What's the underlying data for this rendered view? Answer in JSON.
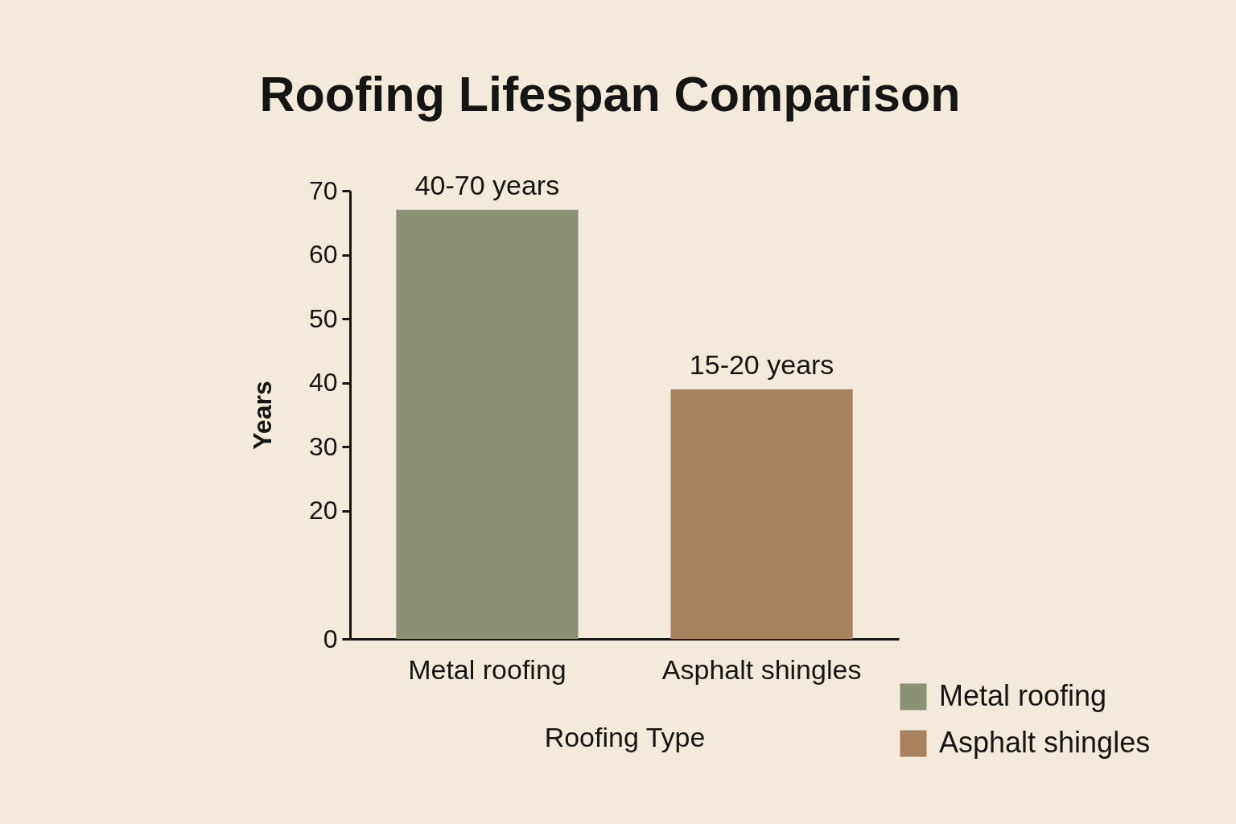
{
  "chart_data": {
    "type": "bar",
    "title": "Roofing Lifespan Comparison",
    "xlabel": "Roofing Type",
    "ylabel": "Years",
    "categories": [
      "Metal roofing",
      "Asphalt shingles"
    ],
    "stacked": true,
    "series": [
      {
        "name": "Metal roofing",
        "color": "#8b9173",
        "values": [
          67,
          null
        ],
        "value_labels": [
          "40-70 years",
          null
        ]
      },
      {
        "name": "Asphalt shingles",
        "color": "#a8825f",
        "values": [
          null,
          39
        ],
        "value_labels": [
          null,
          "15-20 years"
        ]
      }
    ],
    "ylim": [
      0,
      70
    ],
    "yticks": [
      0,
      20,
      30,
      40,
      50,
      60,
      70
    ],
    "grid": false,
    "legend": "bottom right"
  }
}
